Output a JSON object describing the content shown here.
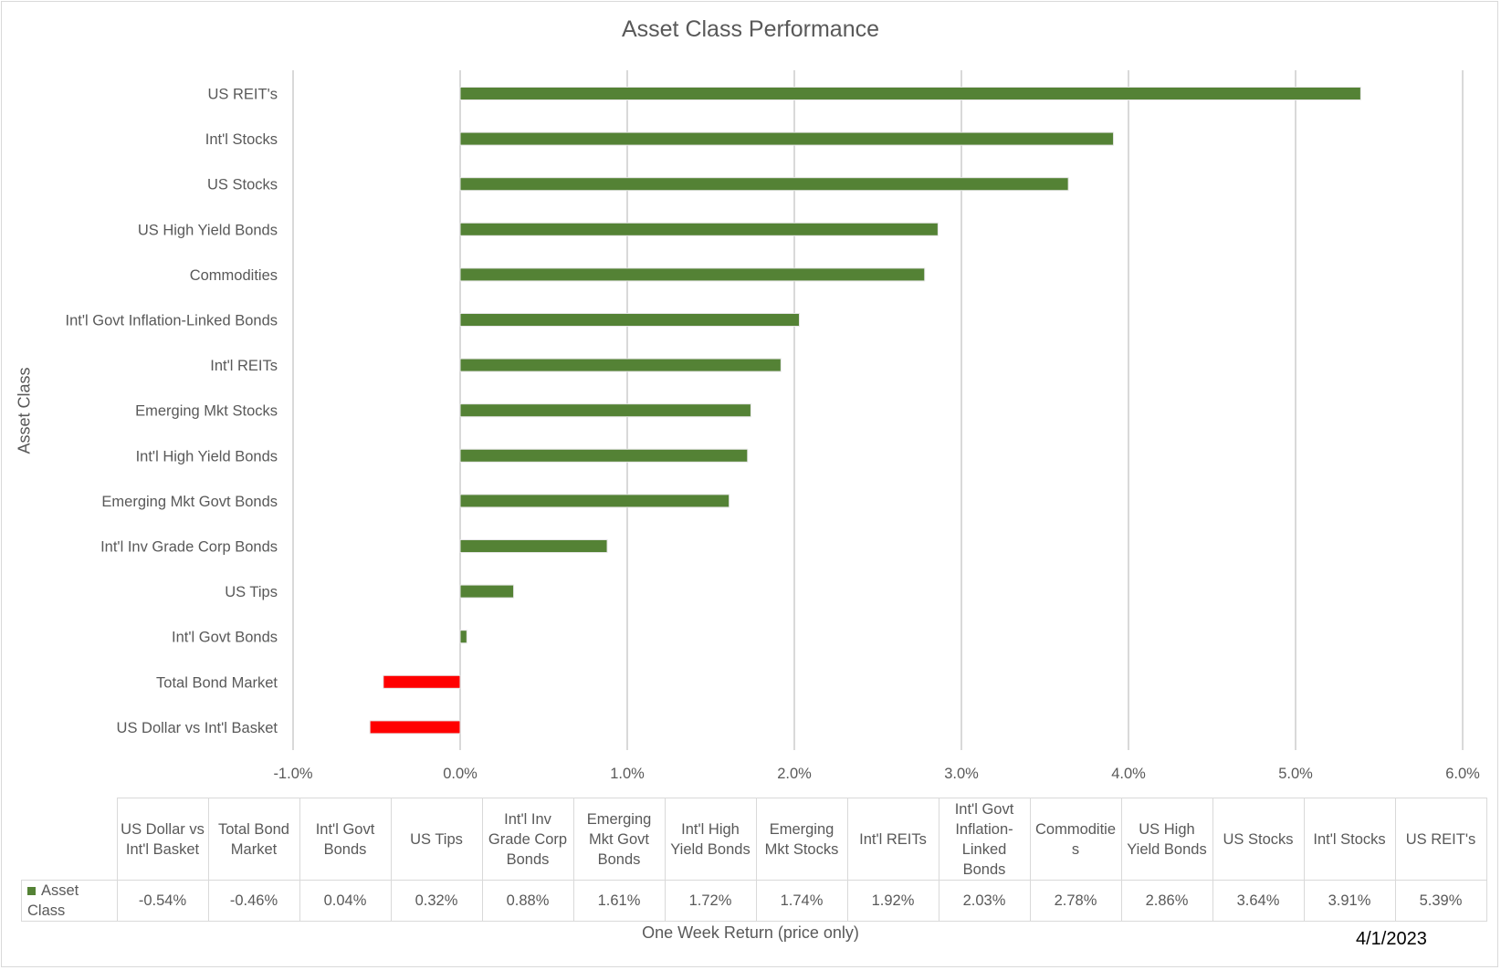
{
  "chart_data": {
    "type": "bar",
    "orientation": "horizontal",
    "title": "Asset Class Performance",
    "ylabel": "Asset Class",
    "xlabel": "One Week Return (price only)",
    "date": "4/1/2023",
    "xlim": [
      -1.0,
      6.0
    ],
    "x_ticks": [
      -1.0,
      0.0,
      1.0,
      2.0,
      3.0,
      4.0,
      5.0,
      6.0
    ],
    "x_tick_labels": [
      "-1.0%",
      "0.0%",
      "1.0%",
      "2.0%",
      "3.0%",
      "4.0%",
      "5.0%",
      "6.0%"
    ],
    "grid": true,
    "legend": "table-row",
    "series": [
      {
        "name": "Asset Class",
        "color": "#548235",
        "negative_color": "#ff0000",
        "values": [
          -0.54,
          -0.46,
          0.04,
          0.32,
          0.88,
          1.61,
          1.72,
          1.74,
          1.92,
          2.03,
          2.78,
          2.86,
          3.64,
          3.91,
          5.39
        ]
      }
    ],
    "categories": [
      "US Dollar vs Int'l Basket",
      "Total Bond Market",
      "Int'l Govt Bonds",
      "US Tips",
      "Int'l Inv Grade Corp Bonds",
      "Emerging Mkt Govt Bonds",
      "Int'l High Yield Bonds",
      "Emerging Mkt Stocks",
      "Int'l REITs",
      "Int'l Govt Inflation-Linked Bonds",
      "Commodities",
      "US High Yield Bonds",
      "US Stocks",
      "Int'l Stocks",
      "US REIT's"
    ],
    "table": {
      "headers": [
        "US Dollar vs Int'l Basket",
        "Total Bond Market",
        "Int'l Govt Bonds",
        "US Tips",
        "Int'l Inv Grade Corp Bonds",
        "Emerging Mkt Govt Bonds",
        "Int'l High Yield Bonds",
        "Emerging Mkt Stocks",
        "Int'l REITs",
        "Int'l Govt Inflation-Linked Bonds",
        "Commoditie s",
        "US High Yield Bonds",
        "US Stocks",
        "Int'l Stocks",
        "US REIT's"
      ],
      "row_label": "Asset Class",
      "values": [
        "-0.54%",
        "-0.46%",
        "0.04%",
        "0.32%",
        "0.88%",
        "1.61%",
        "1.72%",
        "1.74%",
        "1.92%",
        "2.03%",
        "2.78%",
        "2.86%",
        "3.64%",
        "3.91%",
        "5.39%"
      ]
    }
  }
}
